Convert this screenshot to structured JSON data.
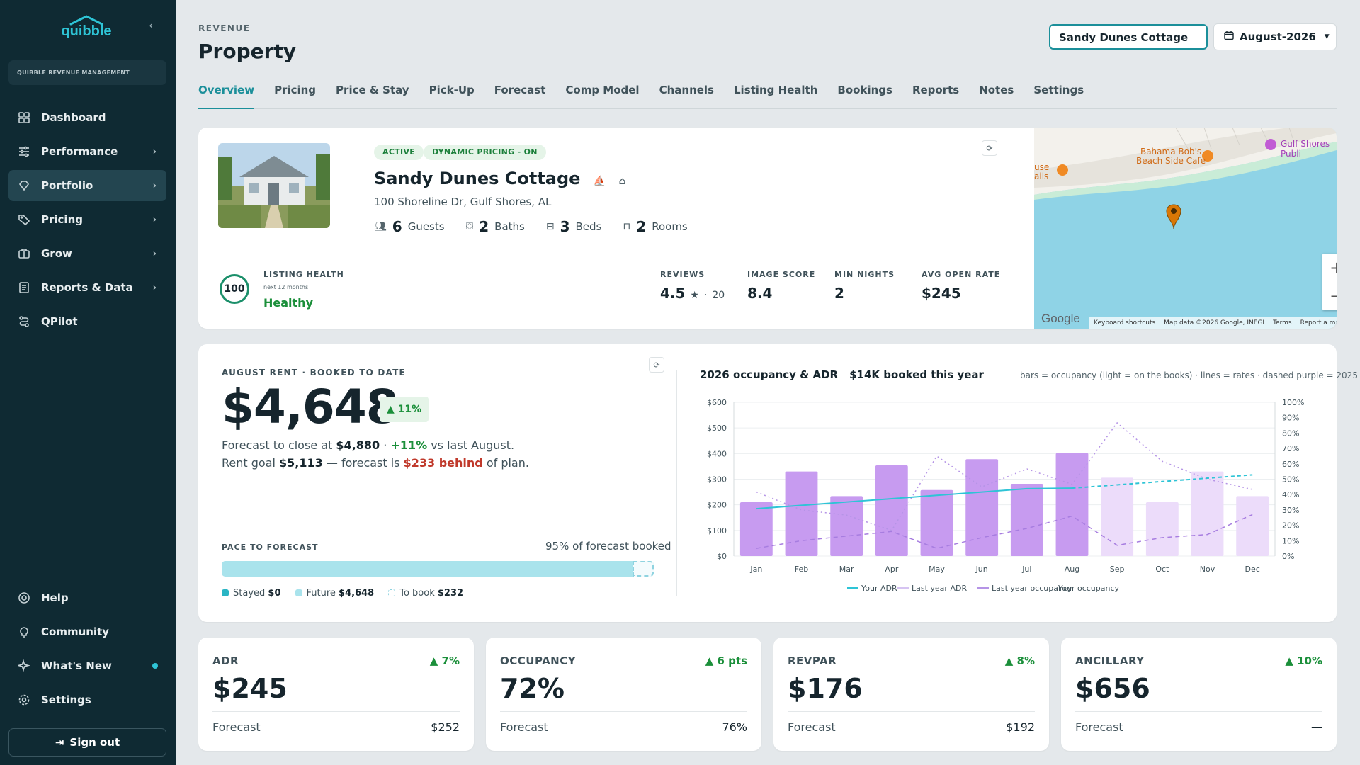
{
  "sidebar": {
    "logo": "quibble",
    "brand": "QUIBBLE REVENUE MANAGEMENT",
    "nav": [
      {
        "label": "Dashboard"
      },
      {
        "label": "Performance"
      },
      {
        "label": "Portfolio"
      },
      {
        "label": "Pricing"
      },
      {
        "label": "Grow"
      },
      {
        "label": "Reports & Data"
      },
      {
        "label": "QPilot"
      }
    ],
    "bottom": [
      {
        "label": "Help"
      },
      {
        "label": "Community"
      },
      {
        "label": "What's New"
      },
      {
        "label": "Settings"
      }
    ],
    "signout": "Sign out"
  },
  "header": {
    "eyebrow": "REVENUE",
    "title": "Property",
    "property_select": "Sandy Dunes Cottage",
    "date_select": "August-2026"
  },
  "tabs": [
    "Overview",
    "Pricing",
    "Price & Stay",
    "Pick-Up",
    "Forecast",
    "Comp Model",
    "Channels",
    "Listing Health",
    "Bookings",
    "Reports",
    "Notes",
    "Settings"
  ],
  "property": {
    "badges": [
      "ACTIVE",
      "DYNAMIC PRICING - ON"
    ],
    "name": "Sandy Dunes Cottage",
    "address": "100 Shoreline Dr, Gulf Shores, AL",
    "specs": [
      {
        "value": "6",
        "label": "Guests"
      },
      {
        "value": "2",
        "label": "Baths"
      },
      {
        "value": "3",
        "label": "Beds"
      },
      {
        "value": "2",
        "label": "Rooms"
      }
    ],
    "health": {
      "score": "100",
      "label": "LISTING HEALTH",
      "sub": "next 12 months",
      "status": "Healthy"
    },
    "stats": [
      {
        "label": "REVIEWS",
        "value": "4.5",
        "extra": "20"
      },
      {
        "label": "IMAGE SCORE",
        "value": "8.4"
      },
      {
        "label": "MIN NIGHTS",
        "value": "2"
      },
      {
        "label": "AVG OPEN RATE",
        "value": "$245"
      }
    ]
  },
  "map": {
    "poi1": "Bahama Bob's",
    "poi1b": "Beach Side Cafe",
    "poi2": "Gulf Shores Publi",
    "poi3a": "use",
    "poi3b": "ails",
    "google": "Google",
    "footer": [
      "Keyboard shortcuts",
      "Map data ©2026 Google, INEGI",
      "Terms",
      "Report a map error"
    ],
    "zoom_in": "+",
    "zoom_out": "−"
  },
  "revenue": {
    "eyebrow": "AUGUST RENT · BOOKED TO DATE",
    "amount": "$4,648",
    "change": "11%",
    "line1_pre": "Forecast to close at ",
    "line1_val": "$4,880",
    "line1_sep": " · ",
    "line1_chg": "+11%",
    "line1_post": " vs last August.",
    "line2_pre": "Rent goal ",
    "line2_val": "$5,113",
    "line2_mid": " — forecast is ",
    "line2_bad": "$233 behind",
    "line2_post": " of plan.",
    "pace_label": "PACE TO FORECAST",
    "pace_right": "95% of forecast booked",
    "pace_fraction": 0.95,
    "legend": [
      {
        "label": "Stayed",
        "value": "$0"
      },
      {
        "label": "Future",
        "value": "$4,648"
      },
      {
        "label": "To book",
        "value": "$232"
      }
    ]
  },
  "chart_title": "2026 occupancy & ADR",
  "chart_sub": "$14K booked this year",
  "chart_note": "bars = occupancy (light = on the books) · lines = rates · dashed purple = 2025",
  "chart_data": {
    "type": "bar",
    "categories": [
      "Jan",
      "Feb",
      "Mar",
      "Apr",
      "May",
      "Jun",
      "Jul",
      "Aug",
      "Sep",
      "Oct",
      "Nov",
      "Dec"
    ],
    "current_month": "Aug",
    "left_axis": {
      "ticks": [
        "$0",
        "$100",
        "$200",
        "$300",
        "$400",
        "$500",
        "$600"
      ],
      "ylim": [
        0,
        600
      ]
    },
    "right_axis": {
      "ticks": [
        "0%",
        "10%",
        "20%",
        "30%",
        "40%",
        "50%",
        "60%",
        "70%",
        "80%",
        "90%",
        "100%"
      ],
      "ylim": [
        0,
        100
      ]
    },
    "series": [
      {
        "name": "Your occupancy",
        "kind": "bar",
        "values": [
          35,
          55,
          39,
          59,
          43,
          63,
          47,
          67,
          51,
          35,
          55,
          39
        ],
        "on_books_from_index": 8
      },
      {
        "name": "Your ADR",
        "kind": "line",
        "values": [
          185,
          198,
          211,
          224,
          237,
          250,
          263,
          265,
          278,
          291,
          304,
          317
        ]
      },
      {
        "name": "Last year ADR",
        "kind": "dotted-line",
        "values": [
          250,
          180,
          160,
          100,
          390,
          270,
          340,
          280,
          520,
          370,
          300,
          260
        ]
      },
      {
        "name": "Last year occupancy",
        "kind": "dashed-line",
        "values": [
          5,
          10,
          13,
          16,
          5,
          12,
          18,
          26,
          7,
          12,
          14,
          27
        ]
      }
    ],
    "legend": [
      "Your ADR",
      "Last year ADR",
      "Last year occupancy",
      "Your occupancy"
    ]
  },
  "kpis": [
    {
      "label": "ADR",
      "change": "7%",
      "value": "$245",
      "forecast_label": "Forecast",
      "forecast": "$252"
    },
    {
      "label": "OCCUPANCY",
      "change": "6 pts",
      "value": "72%",
      "forecast_label": "Forecast",
      "forecast": "76%"
    },
    {
      "label": "REVPAR",
      "change": "8%",
      "value": "$176",
      "forecast_label": "Forecast",
      "forecast": "$192"
    },
    {
      "label": "ANCILLARY",
      "change": "10%",
      "value": "$656",
      "forecast_label": "Forecast",
      "forecast": "—"
    }
  ],
  "colors": {
    "sidebar": "#0f2a33",
    "accent": "#1b8f9a",
    "positive": "#1b8f3a",
    "negative": "#c0392b",
    "bar": "#c79bf0",
    "bar_light": "#ecdcfa",
    "adr_line": "#2ec4d6"
  }
}
